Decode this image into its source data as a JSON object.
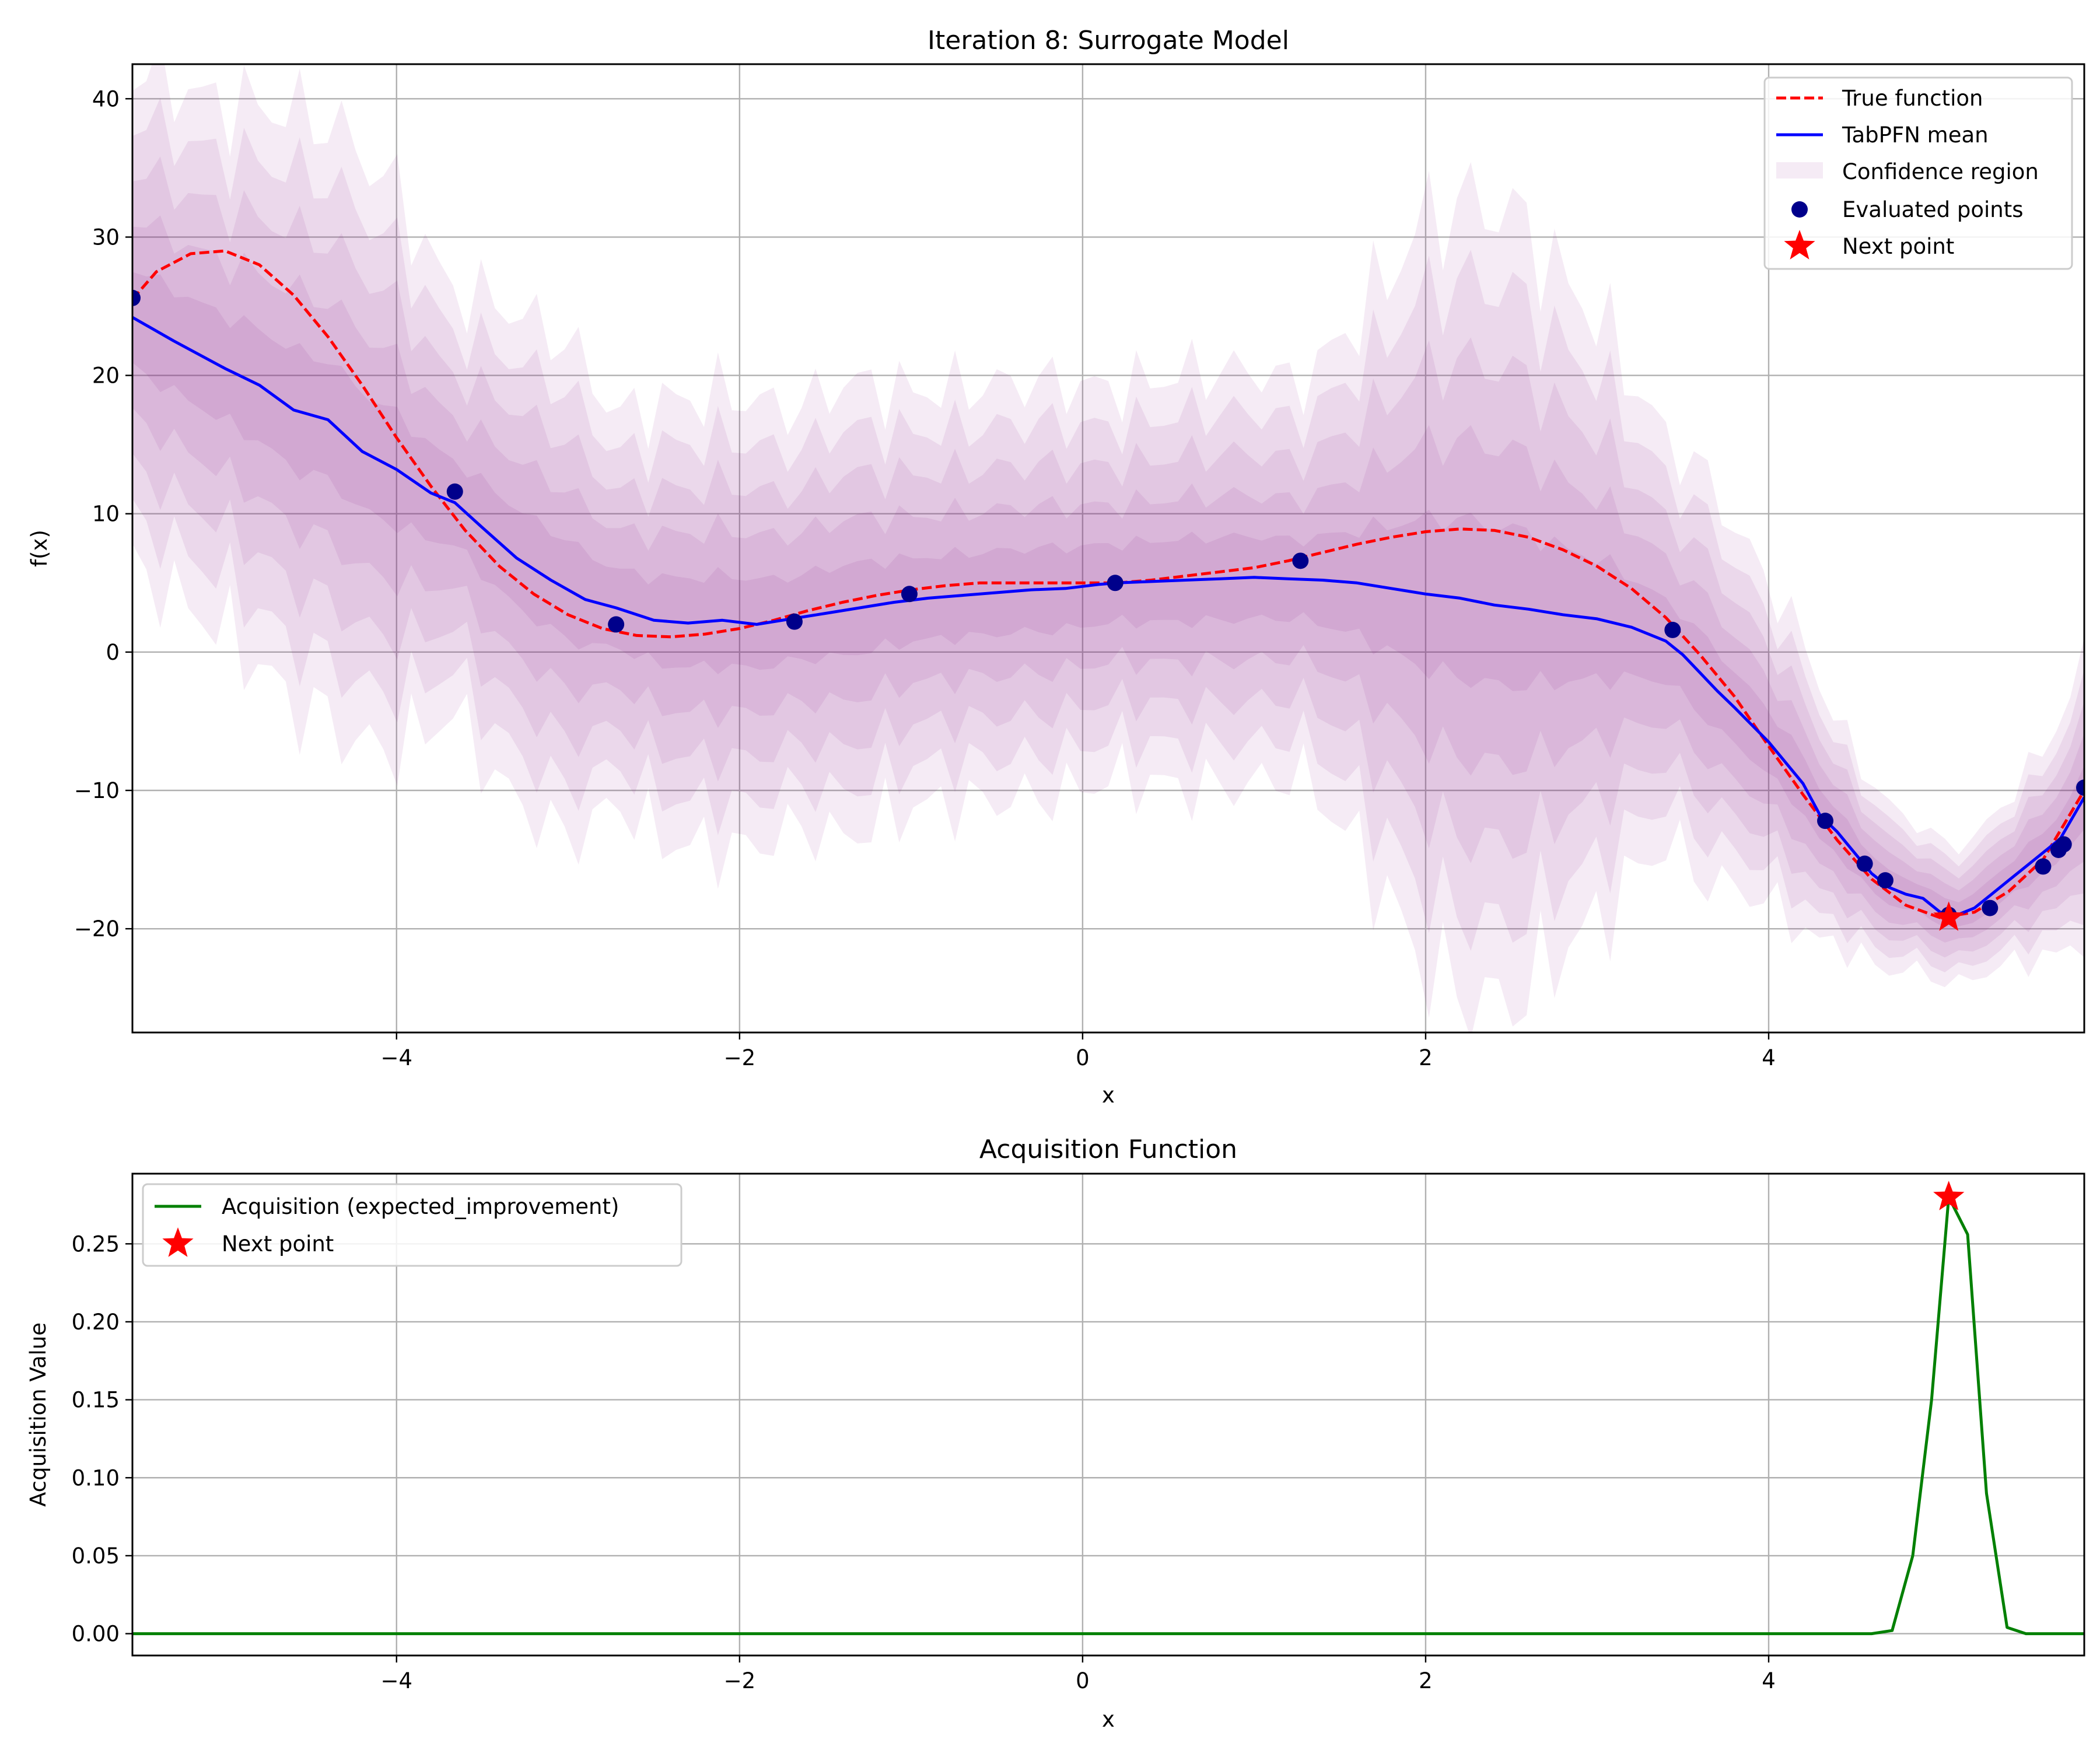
{
  "chart_data": [
    {
      "type": "line",
      "title": "Iteration 8: Surrogate Model",
      "xlabel": "x",
      "ylabel": "f(x)",
      "xlim": [
        -5.54,
        5.84
      ],
      "ylim": [
        -27.5,
        42.5
      ],
      "xticks": [
        -4,
        -2,
        0,
        2,
        4
      ],
      "yticks": [
        -20,
        -10,
        0,
        10,
        20,
        30,
        40
      ],
      "xtick_labels": [
        "−4",
        "−2",
        "0",
        "2",
        "4"
      ],
      "ytick_labels": [
        "−20",
        "−10",
        "0",
        "10",
        "20",
        "30",
        "40"
      ],
      "grid": true,
      "legend_position": "top-right",
      "legend": [
        "True function",
        "TabPFN mean",
        "Confidence region",
        "Evaluated points",
        "Next point"
      ],
      "colors": {
        "true_function": "#ff0000",
        "mean": "#0000ff",
        "confidence": "#800080",
        "evaluated": "#00008b",
        "next": "#ff0000"
      },
      "mean": {
        "x": [
          -5.54,
          -5.3,
          -5.0,
          -4.8,
          -4.6,
          -4.4,
          -4.2,
          -4.0,
          -3.8,
          -3.66,
          -3.5,
          -3.3,
          -3.1,
          -2.9,
          -2.72,
          -2.5,
          -2.3,
          -2.1,
          -1.9,
          -1.7,
          -1.5,
          -1.3,
          -1.1,
          -0.9,
          -0.7,
          -0.5,
          -0.3,
          -0.1,
          0.1,
          0.2,
          0.4,
          0.6,
          0.8,
          1.0,
          1.2,
          1.4,
          1.6,
          1.8,
          2.0,
          2.2,
          2.4,
          2.6,
          2.8,
          3.0,
          3.2,
          3.4,
          3.5,
          3.6,
          3.7,
          3.8,
          4.0,
          4.2,
          4.3,
          4.4,
          4.5,
          4.6,
          4.7,
          4.8,
          4.9,
          5.0,
          5.1,
          5.2,
          5.3,
          5.4,
          5.5,
          5.6,
          5.7,
          5.84
        ],
        "y": [
          24.2,
          22.5,
          20.5,
          19.3,
          17.5,
          16.8,
          14.5,
          13.2,
          11.5,
          10.8,
          9.0,
          6.8,
          5.2,
          3.8,
          3.2,
          2.3,
          2.1,
          2.3,
          2.0,
          2.4,
          2.8,
          3.2,
          3.6,
          3.9,
          4.1,
          4.3,
          4.5,
          4.6,
          4.9,
          5.0,
          5.1,
          5.2,
          5.3,
          5.4,
          5.3,
          5.2,
          5.0,
          4.6,
          4.2,
          3.9,
          3.4,
          3.1,
          2.7,
          2.4,
          1.8,
          0.8,
          -0.2,
          -1.5,
          -2.8,
          -4.0,
          -6.5,
          -9.5,
          -11.8,
          -13.0,
          -14.5,
          -16.0,
          -17.0,
          -17.5,
          -17.8,
          -18.8,
          -19.0,
          -18.5,
          -17.5,
          -16.5,
          -15.5,
          -14.5,
          -13.5,
          -10.5
        ]
      },
      "true_function": {
        "x": [
          -5.54,
          -5.4,
          -5.2,
          -5.0,
          -4.8,
          -4.6,
          -4.4,
          -4.2,
          -4.0,
          -3.8,
          -3.6,
          -3.4,
          -3.2,
          -3.0,
          -2.8,
          -2.6,
          -2.4,
          -2.2,
          -2.0,
          -1.8,
          -1.6,
          -1.4,
          -1.2,
          -1.0,
          -0.8,
          -0.6,
          -0.4,
          -0.2,
          0.0,
          0.2,
          0.4,
          0.6,
          0.8,
          1.0,
          1.2,
          1.4,
          1.6,
          1.8,
          2.0,
          2.2,
          2.4,
          2.6,
          2.8,
          3.0,
          3.2,
          3.4,
          3.6,
          3.8,
          4.0,
          4.2,
          4.4,
          4.6,
          4.8,
          5.0,
          5.2,
          5.4,
          5.6,
          5.84
        ],
        "y": [
          25.5,
          27.5,
          28.8,
          29.0,
          28.0,
          25.8,
          22.8,
          19.3,
          15.5,
          12.0,
          8.8,
          6.2,
          4.2,
          2.7,
          1.7,
          1.2,
          1.1,
          1.3,
          1.7,
          2.3,
          3.0,
          3.6,
          4.1,
          4.5,
          4.8,
          5.0,
          5.0,
          5.0,
          5.0,
          5.0,
          5.2,
          5.5,
          5.8,
          6.1,
          6.6,
          7.2,
          7.8,
          8.3,
          8.7,
          8.9,
          8.8,
          8.3,
          7.4,
          6.2,
          4.6,
          2.5,
          -0.2,
          -3.2,
          -6.8,
          -10.3,
          -13.6,
          -16.4,
          -18.3,
          -19.2,
          -18.8,
          -17.3,
          -15.0,
          -10.0
        ]
      },
      "confidence": {
        "x": [
          -5.54,
          -5.0,
          -4.6,
          -4.2,
          -4.0,
          -3.66,
          -3.4,
          -3.0,
          -2.72,
          -2.4,
          -2.0,
          -1.68,
          -1.4,
          -1.0,
          -0.6,
          -0.2,
          0.2,
          0.6,
          1.0,
          1.27,
          1.6,
          1.8,
          2.0,
          2.2,
          2.4,
          2.6,
          2.8,
          3.0,
          3.2,
          3.44,
          3.6,
          3.8,
          4.0,
          4.2,
          4.4,
          4.6,
          4.8,
          5.0,
          5.2,
          5.4,
          5.6,
          5.84
        ],
        "std": [
          3.6,
          3.8,
          4.3,
          4.3,
          4.0,
          3.0,
          3.5,
          3.6,
          2.8,
          3.2,
          3.3,
          3.0,
          3.3,
          3.0,
          3.0,
          3.0,
          2.8,
          3.0,
          3.0,
          2.8,
          3.8,
          4.6,
          5.4,
          5.7,
          5.8,
          5.5,
          4.8,
          4.4,
          3.6,
          2.8,
          3.0,
          2.6,
          2.3,
          2.1,
          1.6,
          1.3,
          1.1,
          1.0,
          1.0,
          1.2,
          1.5,
          2.0
        ]
      },
      "evaluated_points": {
        "x": [
          -5.54,
          -3.66,
          -2.72,
          -1.68,
          -1.01,
          0.19,
          1.27,
          3.44,
          4.33,
          4.56,
          4.68,
          5.05,
          5.29,
          5.6,
          5.69,
          5.72,
          5.84
        ],
        "y": [
          25.6,
          11.6,
          2.0,
          2.2,
          4.2,
          5.0,
          6.6,
          1.6,
          -12.2,
          -15.3,
          -16.5,
          -19.0,
          -18.5,
          -15.5,
          -14.3,
          -13.9,
          -9.8
        ]
      },
      "next_point": {
        "x": 5.05,
        "y": -19.2
      }
    },
    {
      "type": "line",
      "title": "Acquisition Function",
      "xlabel": "x",
      "ylabel": "Acquisition Value",
      "xlim": [
        -5.54,
        5.84
      ],
      "ylim": [
        -0.014,
        0.295
      ],
      "xticks": [
        -4,
        -2,
        0,
        2,
        4
      ],
      "yticks": [
        0.0,
        0.05,
        0.1,
        0.15,
        0.2,
        0.25
      ],
      "xtick_labels": [
        "−4",
        "−2",
        "0",
        "2",
        "4"
      ],
      "ytick_labels": [
        "0.00",
        "0.05",
        "0.10",
        "0.15",
        "0.20",
        "0.25"
      ],
      "grid": true,
      "legend_position": "top-left",
      "legend": [
        "Acquisition (expected_improvement)",
        "Next point"
      ],
      "colors": {
        "acquisition": "#008000",
        "next": "#ff0000"
      },
      "acquisition": {
        "x": [
          -5.54,
          4.6,
          4.72,
          4.84,
          4.95,
          5.05,
          5.16,
          5.27,
          5.39,
          5.5,
          5.84
        ],
        "y": [
          0.0,
          0.0,
          0.002,
          0.05,
          0.15,
          0.28,
          0.256,
          0.09,
          0.004,
          0.0,
          0.0
        ]
      },
      "next_point": {
        "x": 5.05,
        "y": 0.28
      }
    }
  ]
}
